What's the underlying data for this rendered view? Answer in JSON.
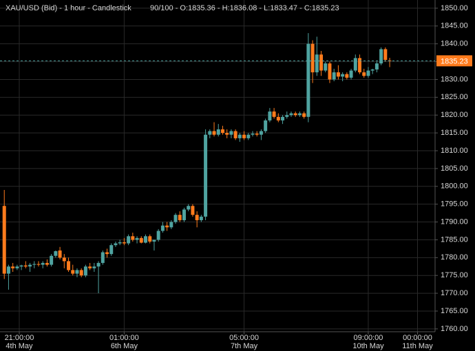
{
  "chart_data": {
    "type": "candlestick",
    "title": "XAU/USD (Bid) - 1 hour - Candlestick",
    "subtitle": "90/100 - O:1835.36 - H:1836.08 - L:1833.47 - C:1835.23",
    "up_color": "#4fa3a0",
    "down_color": "#ff7b1c",
    "grid": true,
    "price_line": 1835.23,
    "xlim": [
      -1,
      100.6
    ],
    "xticks": [
      {
        "value": 3.5,
        "label": "21:00:00"
      },
      {
        "value": 28,
        "label": "01:00:00"
      },
      {
        "value": 56,
        "label": "05:00:00"
      },
      {
        "value": 85,
        "label": "09:00:00"
      },
      {
        "value": 96.5,
        "label": "00:00:00"
      }
    ],
    "xtick_dates": [
      "4th May",
      "6th May",
      "7th May",
      "10th May",
      "11th May"
    ],
    "ylim": [
      1759.2,
      1852.3
    ],
    "yticks": [
      {
        "value": 1760,
        "label": "1760.00"
      },
      {
        "value": 1765,
        "label": "1765.00"
      },
      {
        "value": 1770,
        "label": "1770.00"
      },
      {
        "value": 1775,
        "label": "1775.00"
      },
      {
        "value": 1780,
        "label": "1780.00"
      },
      {
        "value": 1785,
        "label": "1785.00"
      },
      {
        "value": 1790,
        "label": "1790.00"
      },
      {
        "value": 1795,
        "label": "1795.00"
      },
      {
        "value": 1800,
        "label": "1800.00"
      },
      {
        "value": 1805,
        "label": "1805.00"
      },
      {
        "value": 1810,
        "label": "1810.00"
      },
      {
        "value": 1815,
        "label": "1815.00"
      },
      {
        "value": 1820,
        "label": "1820.00"
      },
      {
        "value": 1825,
        "label": "1825.00"
      },
      {
        "value": 1830,
        "label": "1830.00"
      },
      {
        "value": 1835,
        "label": "1835.00"
      },
      {
        "value": 1840,
        "label": "1840.00"
      },
      {
        "value": 1845,
        "label": "1845.00"
      },
      {
        "value": 1850,
        "label": "1850.00"
      }
    ],
    "open": [
      1794.5,
      1775.5,
      1777.5,
      1777,
      1777.5,
      1777.8,
      1777.5,
      1778,
      1778.2,
      1778,
      1778.5,
      1778,
      1780.5,
      1782,
      1780,
      1779,
      1776.5,
      1775.5,
      1776.5,
      1775,
      1777.5,
      1777,
      1777.5,
      1778.5,
      1781.5,
      1781,
      1783.5,
      1784,
      1784.3,
      1784,
      1786,
      1785,
      1785.5,
      1784.2,
      1786,
      1784.5,
      1785,
      1787.5,
      1789,
      1788.5,
      1790,
      1792,
      1790.5,
      1793.5,
      1794.5,
      1792,
      1790.5,
      1791.5,
      1814.5,
      1815.5,
      1814.5,
      1816,
      1815,
      1814.5,
      1815.5,
      1813.5,
      1814.5,
      1813.5,
      1814.5,
      1814.8,
      1814.5,
      1815.5,
      1818.5,
      1821,
      1819.5,
      1818.5,
      1819.5,
      1820,
      1820.5,
      1820,
      1820.5,
      1819.5,
      1840,
      1832,
      1837,
      1832.5,
      1834.5,
      1830,
      1832,
      1830.8,
      1831.5,
      1830.5,
      1832.5,
      1836,
      1832,
      1831,
      1832.5,
      1832.8,
      1834.5,
      1838.5,
      1835.36
    ],
    "high": [
      1799,
      1778,
      1778.5,
      1778,
      1778,
      1779,
      1778.5,
      1779,
      1779,
      1779,
      1779.5,
      1781,
      1782,
      1783,
      1781,
      1780,
      1778,
      1777,
      1777,
      1778,
      1778.5,
      1778.5,
      1779,
      1782,
      1782.5,
      1784,
      1784.5,
      1785,
      1785.5,
      1786.5,
      1787,
      1786,
      1786,
      1786.5,
      1786.5,
      1785,
      1788,
      1790,
      1790,
      1790.5,
      1792.5,
      1793,
      1794,
      1795,
      1795,
      1793,
      1792,
      1816,
      1816,
      1818,
      1817.5,
      1817,
      1816,
      1816,
      1816,
      1815,
      1815.5,
      1815,
      1815.5,
      1815.5,
      1816,
      1819,
      1822,
      1822,
      1820.5,
      1820,
      1821,
      1821,
      1821,
      1821,
      1821,
      1843,
      1841,
      1842,
      1838,
      1835,
      1835,
      1833,
      1834,
      1832,
      1832,
      1833,
      1837,
      1837,
      1833,
      1833.5,
      1833,
      1835,
      1839,
      1839,
      1836.08
    ],
    "low": [
      1774,
      1771,
      1776,
      1776.5,
      1776.5,
      1777,
      1776,
      1777,
      1777.5,
      1777,
      1777.5,
      1777.5,
      1780,
      1779.5,
      1777,
      1776,
      1775,
      1774.5,
      1774.5,
      1774.5,
      1776.5,
      1776,
      1770,
      1778,
      1780,
      1780.5,
      1783,
      1783.5,
      1783.5,
      1783.5,
      1784.5,
      1784,
      1784,
      1784,
      1784,
      1782,
      1784.5,
      1787,
      1787.5,
      1788,
      1789.5,
      1790,
      1790,
      1793,
      1791.5,
      1788.5,
      1790,
      1790.5,
      1813.5,
      1814,
      1814,
      1814.5,
      1813.5,
      1813.5,
      1813,
      1812.5,
      1813,
      1813,
      1814,
      1814,
      1813,
      1815,
      1818,
      1819,
      1818,
      1817.5,
      1819,
      1819.5,
      1819.5,
      1819.5,
      1819,
      1818,
      1829,
      1831,
      1831,
      1832,
      1829,
      1829.5,
      1830,
      1829.5,
      1830,
      1830,
      1832,
      1831.5,
      1830.5,
      1830.5,
      1831.5,
      1832,
      1834,
      1835,
      1833.47
    ],
    "close": [
      1775.5,
      1777.5,
      1777,
      1777.5,
      1777.8,
      1777.5,
      1778,
      1778.2,
      1778,
      1778.5,
      1778,
      1780.5,
      1781.8,
      1780,
      1779,
      1776.5,
      1775.5,
      1776.5,
      1775,
      1777.5,
      1777,
      1777.5,
      1778.5,
      1781.5,
      1781,
      1783.5,
      1784,
      1784.3,
      1784,
      1786,
      1785,
      1785.5,
      1784.2,
      1786,
      1784.5,
      1785,
      1787.5,
      1789,
      1788.5,
      1790,
      1792,
      1790.5,
      1793.5,
      1794.5,
      1792,
      1790.5,
      1791.5,
      1814.5,
      1815.5,
      1814.5,
      1816,
      1815,
      1814.5,
      1815.5,
      1813.5,
      1814.5,
      1813.5,
      1814.5,
      1814.8,
      1814.5,
      1815.5,
      1818.5,
      1821,
      1819.5,
      1818.5,
      1819.5,
      1820,
      1820.5,
      1820,
      1820.5,
      1819.5,
      1840,
      1832,
      1837,
      1832.5,
      1834.5,
      1830,
      1832,
      1830.8,
      1831.5,
      1830.5,
      1832.5,
      1836,
      1832,
      1831,
      1832.5,
      1832.8,
      1834.5,
      1838.5,
      1835.5,
      1835.23
    ]
  }
}
